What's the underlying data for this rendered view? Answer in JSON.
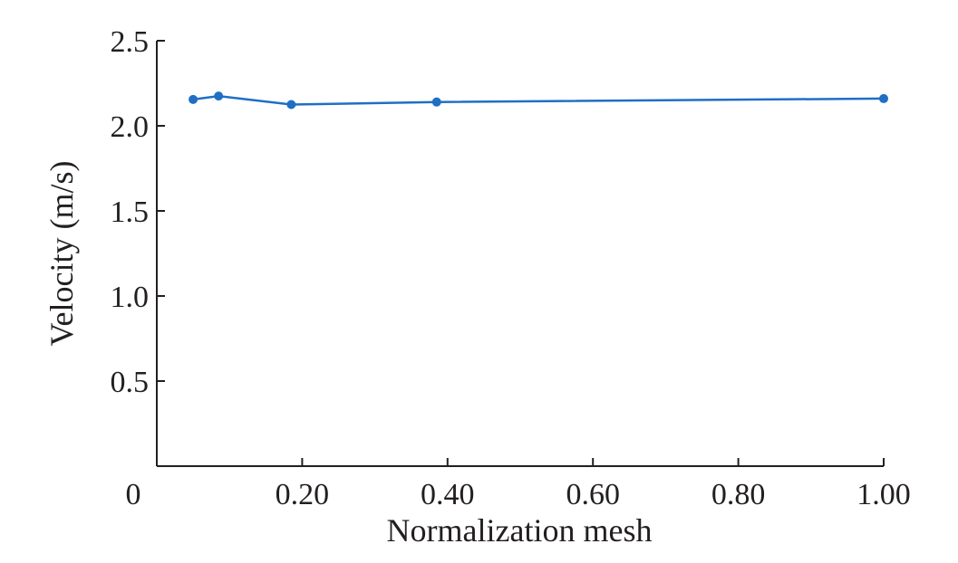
{
  "chart_data": {
    "type": "line",
    "title": "",
    "xlabel": "Normalization mesh",
    "ylabel": "Velocity (m/s)",
    "xlim": [
      0,
      1.0
    ],
    "ylim": [
      0,
      2.5
    ],
    "x_ticks": [
      0,
      0.2,
      0.4,
      0.6,
      0.8,
      1.0
    ],
    "x_tick_labels": [
      "0",
      "0.20",
      "0.40",
      "0.60",
      "0.80",
      "1.00"
    ],
    "y_ticks": [
      0.5,
      1.0,
      1.5,
      2.0,
      2.5
    ],
    "y_tick_labels": [
      "0.5",
      "1.0",
      "1.5",
      "2.0",
      "2.5"
    ],
    "grid": false,
    "series": [
      {
        "name": "Velocity",
        "color": "#1f6fc4",
        "x": [
          0.05,
          0.085,
          0.185,
          0.385,
          1.0
        ],
        "y": [
          2.155,
          2.175,
          2.125,
          2.14,
          2.16
        ]
      }
    ]
  }
}
